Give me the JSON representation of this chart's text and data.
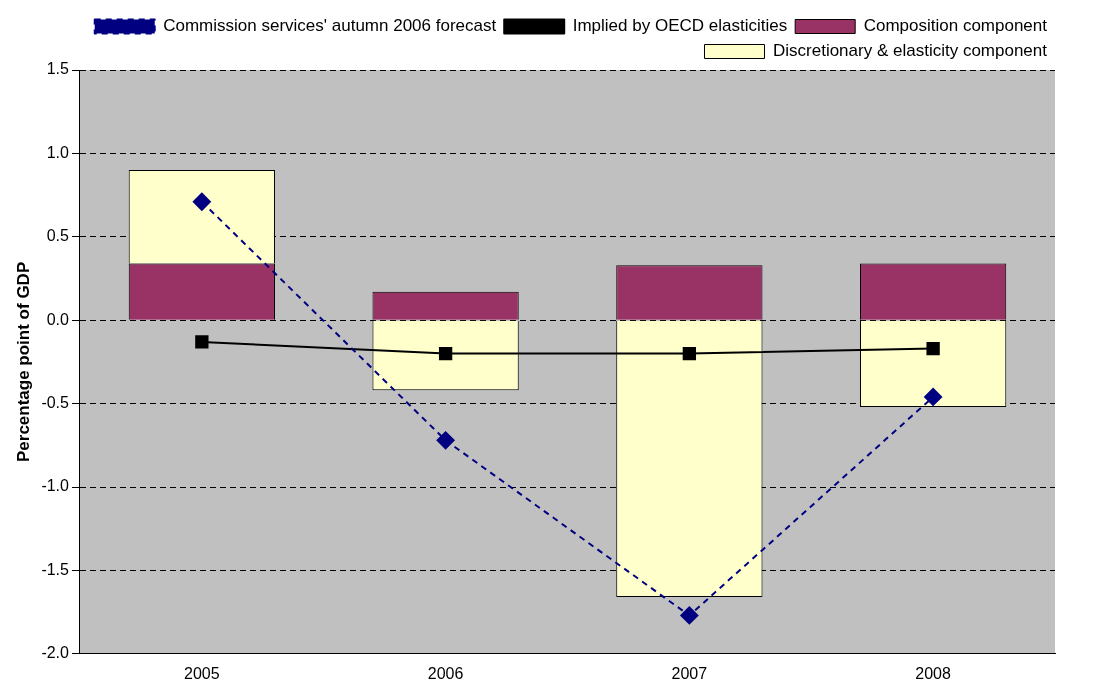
{
  "chart_data": {
    "type": "bar",
    "stacked": true,
    "ylabel": "Percentage point of GDP",
    "categories": [
      "2005",
      "2006",
      "2007",
      "2008"
    ],
    "series": [
      {
        "name": "Composition component",
        "color": "#993366",
        "values": [
          0.34,
          0.17,
          0.33,
          0.34
        ]
      },
      {
        "name": "Discretionary & elasticity component",
        "color": "#ffffcc",
        "values": [
          0.56,
          -0.42,
          -1.66,
          -0.52
        ]
      },
      {
        "name": "Commission services' autumn 2006 forecast",
        "type": "line",
        "color": "#000080",
        "marker": "diamond",
        "line_style": "dashed",
        "values": [
          0.71,
          -0.72,
          -1.77,
          -0.46
        ]
      },
      {
        "name": "Implied by OECD elasticities",
        "type": "line",
        "color": "#000000",
        "marker": "square",
        "line_style": "solid",
        "values": [
          -0.13,
          -0.2,
          -0.2,
          -0.17
        ]
      }
    ],
    "ylim": [
      -2,
      1.5
    ],
    "yticks": [
      {
        "value": -2,
        "label": "-2.0"
      },
      {
        "value": -1.5,
        "label": "-1.5"
      },
      {
        "value": -1,
        "label": "-1.0"
      },
      {
        "value": -0.5,
        "label": "-0.5"
      },
      {
        "value": 0,
        "label": "0.0"
      },
      {
        "value": 0.5,
        "label": "0.5"
      },
      {
        "value": 1,
        "label": "1.0"
      },
      {
        "value": 1.5,
        "label": "1.5"
      }
    ],
    "grid": "y",
    "legend": "top right"
  }
}
